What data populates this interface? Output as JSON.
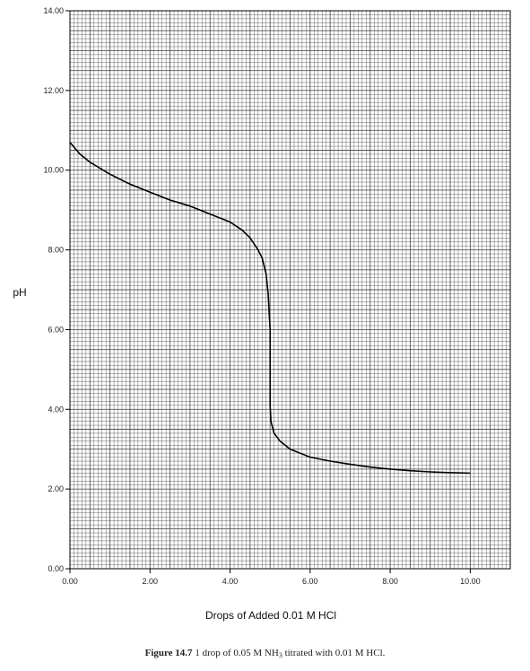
{
  "chart_data": {
    "type": "line",
    "xlabel": "Drops of Added 0.01 M HCl",
    "ylabel": "pH",
    "xlim": [
      0,
      11
    ],
    "ylim": [
      0,
      14
    ],
    "x_ticks": [
      "0.00",
      "2.00",
      "4.00",
      "6.00",
      "8.00",
      "10.00"
    ],
    "y_ticks": [
      "0.00",
      "2.00",
      "4.00",
      "6.00",
      "8.00",
      "10.00",
      "12.00",
      "14.00"
    ],
    "grid": true,
    "series": [
      {
        "x": [
          0,
          0.25,
          0.5,
          1.0,
          1.5,
          2.0,
          2.5,
          3.0,
          3.5,
          4.0,
          4.3,
          4.5,
          4.7,
          4.8,
          4.9,
          4.95,
          5.0,
          5.0,
          5.02,
          5.1,
          5.25,
          5.5,
          6.0,
          6.5,
          7.0,
          7.5,
          8.0,
          8.5,
          9.0,
          9.5,
          10.0
        ],
        "y": [
          10.7,
          10.4,
          10.2,
          9.9,
          9.65,
          9.45,
          9.25,
          9.1,
          8.9,
          8.7,
          8.5,
          8.3,
          8.0,
          7.8,
          7.4,
          6.9,
          6.0,
          4.1,
          3.7,
          3.4,
          3.2,
          3.0,
          2.8,
          2.7,
          2.62,
          2.55,
          2.5,
          2.46,
          2.43,
          2.41,
          2.4
        ]
      }
    ]
  },
  "caption": {
    "label": "Figure 14.7",
    "text_pre": "1 drop of 0.05 M NH",
    "subscript": "3",
    "text_post": " titrated with 0.01 M HCl."
  },
  "colors": {
    "grid": "#555555",
    "curve": "#000000",
    "axis": "#000000"
  }
}
